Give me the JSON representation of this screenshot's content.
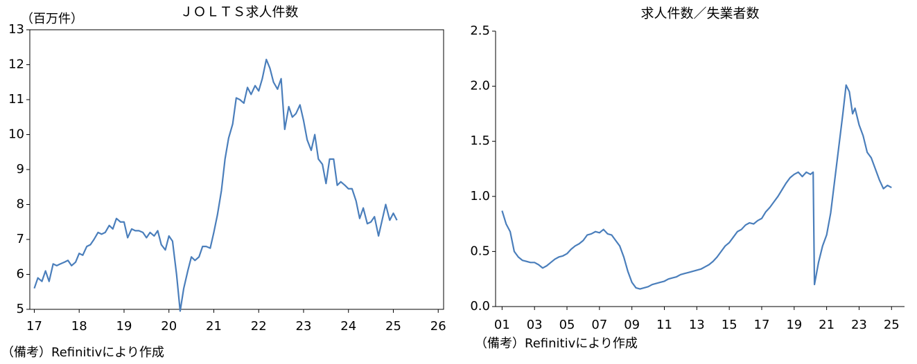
{
  "chart_data": [
    {
      "type": "line",
      "title": "ＪＯＬＴＳ求人件数",
      "y_unit": "（百万件）",
      "note": "（備考）Refinitivにより作成",
      "xlim": [
        16.9,
        26.12
      ],
      "xticks": [
        17,
        18,
        19,
        20,
        21,
        22,
        23,
        24,
        25,
        26
      ],
      "ylim": [
        5,
        13
      ],
      "yticks": [
        5,
        6,
        7,
        8,
        9,
        10,
        11,
        12,
        13
      ],
      "series": [
        {
          "color": "#4a7ebb",
          "x": [
            17.0,
            17.08,
            17.17,
            17.25,
            17.33,
            17.42,
            17.5,
            17.58,
            17.67,
            17.75,
            17.83,
            17.92,
            18.0,
            18.08,
            18.17,
            18.25,
            18.33,
            18.42,
            18.5,
            18.58,
            18.67,
            18.75,
            18.83,
            18.92,
            19.0,
            19.08,
            19.17,
            19.25,
            19.33,
            19.42,
            19.5,
            19.58,
            19.67,
            19.75,
            19.83,
            19.92,
            20.0,
            20.08,
            20.17,
            20.25,
            20.33,
            20.42,
            20.5,
            20.58,
            20.67,
            20.75,
            20.83,
            20.92,
            21.0,
            21.08,
            21.17,
            21.25,
            21.33,
            21.42,
            21.5,
            21.58,
            21.67,
            21.75,
            21.83,
            21.92,
            22.0,
            22.08,
            22.17,
            22.25,
            22.33,
            22.42,
            22.5,
            22.58,
            22.67,
            22.75,
            22.83,
            22.92,
            23.0,
            23.08,
            23.17,
            23.25,
            23.33,
            23.42,
            23.5,
            23.58,
            23.67,
            23.75,
            23.83,
            23.92,
            24.0,
            24.08,
            24.17,
            24.25,
            24.33,
            24.42,
            24.5,
            24.58,
            24.67,
            24.75,
            24.83,
            24.92,
            25.0,
            25.08
          ],
          "values": [
            5.6,
            5.9,
            5.8,
            6.1,
            5.8,
            6.3,
            6.25,
            6.3,
            6.35,
            6.4,
            6.25,
            6.35,
            6.6,
            6.55,
            6.8,
            6.85,
            7.0,
            7.2,
            7.15,
            7.2,
            7.4,
            7.3,
            7.6,
            7.5,
            7.5,
            7.05,
            7.3,
            7.25,
            7.25,
            7.2,
            7.05,
            7.2,
            7.1,
            7.25,
            6.85,
            6.7,
            7.1,
            6.95,
            6.0,
            4.95,
            5.6,
            6.1,
            6.5,
            6.4,
            6.5,
            6.8,
            6.8,
            6.75,
            7.2,
            7.7,
            8.4,
            9.3,
            9.9,
            10.3,
            11.05,
            11.0,
            10.9,
            11.35,
            11.15,
            11.4,
            11.25,
            11.6,
            12.15,
            11.9,
            11.5,
            11.3,
            11.6,
            10.15,
            10.8,
            10.5,
            10.6,
            10.85,
            10.4,
            9.85,
            9.55,
            10.0,
            9.3,
            9.15,
            8.6,
            9.3,
            9.3,
            8.55,
            8.65,
            8.55,
            8.45,
            8.45,
            8.1,
            7.6,
            7.9,
            7.45,
            7.5,
            7.65,
            7.1,
            7.55,
            8.0,
            7.55,
            7.75,
            7.55
          ]
        }
      ]
    },
    {
      "type": "line",
      "title": "求人件数／失業者数",
      "note": "（備考）Refinitivにより作成",
      "xlim": [
        0.6,
        25.8
      ],
      "xticks": [
        {
          "value": 1,
          "label": "01"
        },
        {
          "value": 3,
          "label": "03"
        },
        {
          "value": 5,
          "label": "05"
        },
        {
          "value": 7,
          "label": "07"
        },
        {
          "value": 9,
          "label": "09"
        },
        11,
        13,
        15,
        17,
        19,
        21,
        23,
        25
      ],
      "ylim": [
        0,
        2.5
      ],
      "yticks": [
        {
          "value": 0,
          "label": "0.0"
        },
        0.5,
        {
          "value": 1,
          "label": "1.0"
        },
        1.5,
        {
          "value": 2,
          "label": "2.0"
        },
        2.5
      ],
      "series": [
        {
          "color": "#4a7ebb",
          "x": [
            1.0,
            1.25,
            1.5,
            1.75,
            2.0,
            2.25,
            2.5,
            2.75,
            3.0,
            3.25,
            3.5,
            3.75,
            4.0,
            4.25,
            4.5,
            4.75,
            5.0,
            5.25,
            5.5,
            5.75,
            6.0,
            6.25,
            6.5,
            6.75,
            7.0,
            7.25,
            7.5,
            7.75,
            8.0,
            8.25,
            8.5,
            8.75,
            9.0,
            9.25,
            9.5,
            9.75,
            10.0,
            10.25,
            10.5,
            10.75,
            11.0,
            11.25,
            11.5,
            11.75,
            12.0,
            12.25,
            12.5,
            12.75,
            13.0,
            13.25,
            13.5,
            13.75,
            14.0,
            14.25,
            14.5,
            14.75,
            15.0,
            15.25,
            15.5,
            15.75,
            16.0,
            16.25,
            16.5,
            16.75,
            17.0,
            17.25,
            17.5,
            17.75,
            18.0,
            18.25,
            18.5,
            18.75,
            19.0,
            19.25,
            19.5,
            19.75,
            20.0,
            20.17,
            20.25,
            20.5,
            20.75,
            21.0,
            21.25,
            21.5,
            21.75,
            22.0,
            22.2,
            22.4,
            22.6,
            22.75,
            23.0,
            23.25,
            23.5,
            23.75,
            24.0,
            24.25,
            24.5,
            24.75,
            25.0
          ],
          "values": [
            0.87,
            0.75,
            0.68,
            0.5,
            0.45,
            0.42,
            0.41,
            0.4,
            0.4,
            0.38,
            0.35,
            0.37,
            0.4,
            0.43,
            0.45,
            0.46,
            0.48,
            0.52,
            0.55,
            0.57,
            0.6,
            0.65,
            0.66,
            0.68,
            0.67,
            0.7,
            0.66,
            0.65,
            0.6,
            0.55,
            0.45,
            0.32,
            0.22,
            0.17,
            0.16,
            0.17,
            0.18,
            0.2,
            0.21,
            0.22,
            0.23,
            0.25,
            0.26,
            0.27,
            0.29,
            0.3,
            0.31,
            0.32,
            0.33,
            0.34,
            0.36,
            0.38,
            0.41,
            0.45,
            0.5,
            0.55,
            0.58,
            0.63,
            0.68,
            0.7,
            0.74,
            0.76,
            0.75,
            0.78,
            0.8,
            0.86,
            0.9,
            0.95,
            1.0,
            1.06,
            1.12,
            1.17,
            1.2,
            1.22,
            1.18,
            1.22,
            1.2,
            1.22,
            0.2,
            0.4,
            0.55,
            0.65,
            0.85,
            1.15,
            1.45,
            1.75,
            2.01,
            1.95,
            1.75,
            1.8,
            1.65,
            1.55,
            1.4,
            1.35,
            1.25,
            1.15,
            1.07,
            1.1,
            1.08
          ]
        }
      ]
    }
  ]
}
